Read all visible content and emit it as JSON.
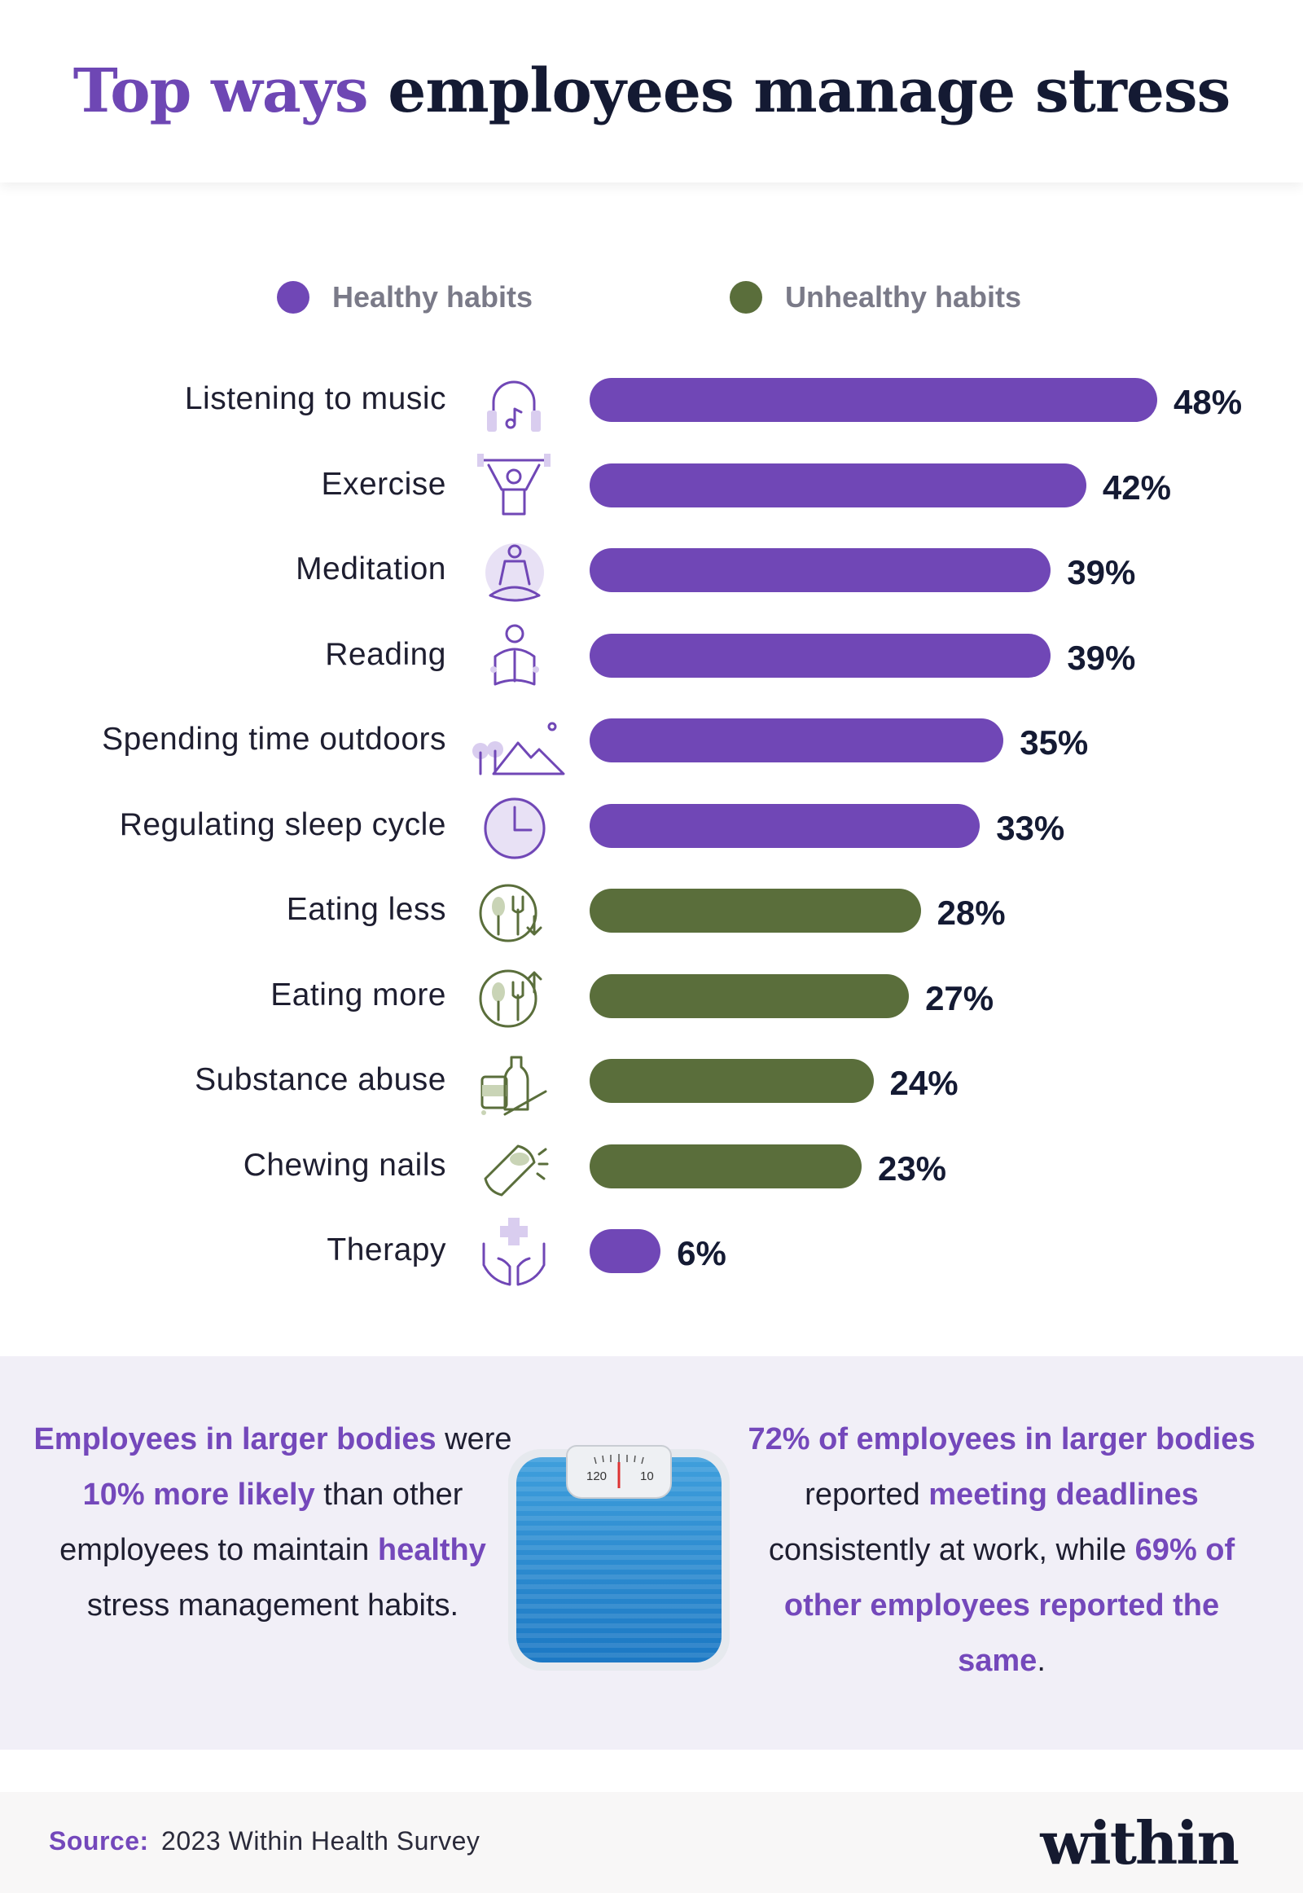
{
  "title": {
    "accent": "Top ways",
    "rest": "employees manage stress"
  },
  "legend": [
    {
      "label": "Healthy habits",
      "color": "#7047b6"
    },
    {
      "label": "Unhealthy habits",
      "color": "#5a6e3b"
    }
  ],
  "chart_data": {
    "type": "bar",
    "orientation": "horizontal",
    "categories": [
      "Listening to music",
      "Exercise",
      "Meditation",
      "Reading",
      "Spending time outdoors",
      "Regulating sleep cycle",
      "Eating less",
      "Eating more",
      "Substance abuse",
      "Chewing nails",
      "Therapy"
    ],
    "values": [
      48,
      42,
      39,
      39,
      35,
      33,
      28,
      27,
      24,
      23,
      6
    ],
    "value_labels": [
      "48%",
      "42%",
      "39%",
      "39%",
      "35%",
      "33%",
      "28%",
      "27%",
      "24%",
      "23%",
      "6%"
    ],
    "groups": [
      "Healthy habits",
      "Healthy habits",
      "Healthy habits",
      "Healthy habits",
      "Healthy habits",
      "Healthy habits",
      "Unhealthy habits",
      "Unhealthy habits",
      "Unhealthy habits",
      "Unhealthy habits",
      "Healthy habits"
    ],
    "icons": [
      "headphones-icon",
      "exercise-icon",
      "meditation-icon",
      "reading-icon",
      "outdoors-icon",
      "clock-icon",
      "eating-less-icon",
      "eating-more-icon",
      "substance-icon",
      "chewing-nails-icon",
      "therapy-icon"
    ],
    "title": "",
    "xlabel": "",
    "ylabel": "",
    "legend_position": "top",
    "grid": false
  },
  "info": {
    "left": [
      {
        "t": "Employees in larger bodies",
        "b": true
      },
      {
        "t": " were ",
        "b": false
      },
      {
        "t": "10% more likely",
        "b": true
      },
      {
        "t": " than other employees to maintain ",
        "b": false
      },
      {
        "t": "healthy",
        "b": true
      },
      {
        "t": " stress management habits.",
        "b": false
      }
    ],
    "right": [
      {
        "t": "72% of employees in larger bodies",
        "b": true
      },
      {
        "t": " reported ",
        "b": false
      },
      {
        "t": "meeting deadlines",
        "b": true
      },
      {
        "t": " consistently at work, while ",
        "b": false
      },
      {
        "t": "69% of other employees reported the same",
        "b": true
      },
      {
        "t": ".",
        "b": false
      }
    ],
    "scale_icon": "bathroom-scale-icon",
    "scale_dial": {
      "left": "120",
      "right": "10"
    }
  },
  "footer": {
    "source_label": "Source:",
    "source_text": "2023 Within Health Survey",
    "logo": "within"
  }
}
